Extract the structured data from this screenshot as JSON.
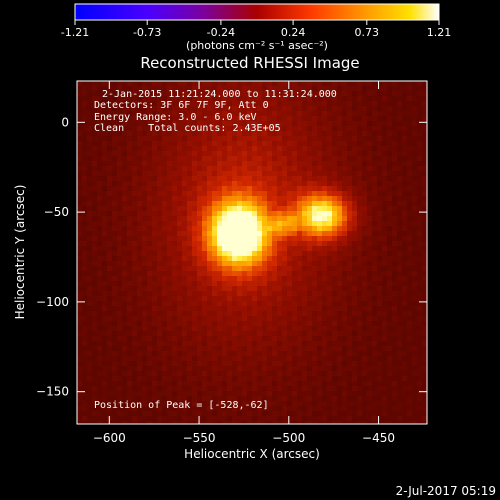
{
  "colorbar": {
    "tick_labels": [
      "-1.21",
      "-0.73",
      "-0.24",
      "0.24",
      "0.73",
      "1.21"
    ],
    "tick_values": [
      -1.21,
      -0.73,
      -0.24,
      0.24,
      0.73,
      1.21
    ],
    "range": [
      -1.21,
      1.21
    ],
    "unit_label": "(photons cm⁻² s⁻¹ asec⁻²)"
  },
  "chart_data": {
    "type": "heatmap",
    "title": "Reconstructed RHESSI Image",
    "xlabel": "Heliocentric X (arcsec)",
    "ylabel": "Heliocentric Y (arcsec)",
    "xlim": [
      -618,
      -423
    ],
    "ylim": [
      -168,
      23
    ],
    "x_ticks": [
      -600,
      -550,
      -500,
      -450
    ],
    "y_ticks": [
      0,
      -50,
      -100,
      -150
    ],
    "info_lines": [
      "2-Jan-2015 11:21:24.000 to 11:31:24.000",
      "Detectors: 3F 6F 7F 9F, Att 0",
      "Energy Range: 3.0 - 6.0 keV",
      "Clean    Total counts: 2.43E+05"
    ],
    "peak_text": "Position of Peak = [-528,-62]",
    "sources": [
      {
        "x": -528,
        "y": -62,
        "peak": 1.0
      },
      {
        "x": -481,
        "y": -52,
        "peak": 0.82
      }
    ],
    "grid": false
  },
  "footer": {
    "timestamp": "2-Jul-2017 05:19"
  },
  "colors": {
    "background": "#000000",
    "text": "#ffffff"
  }
}
